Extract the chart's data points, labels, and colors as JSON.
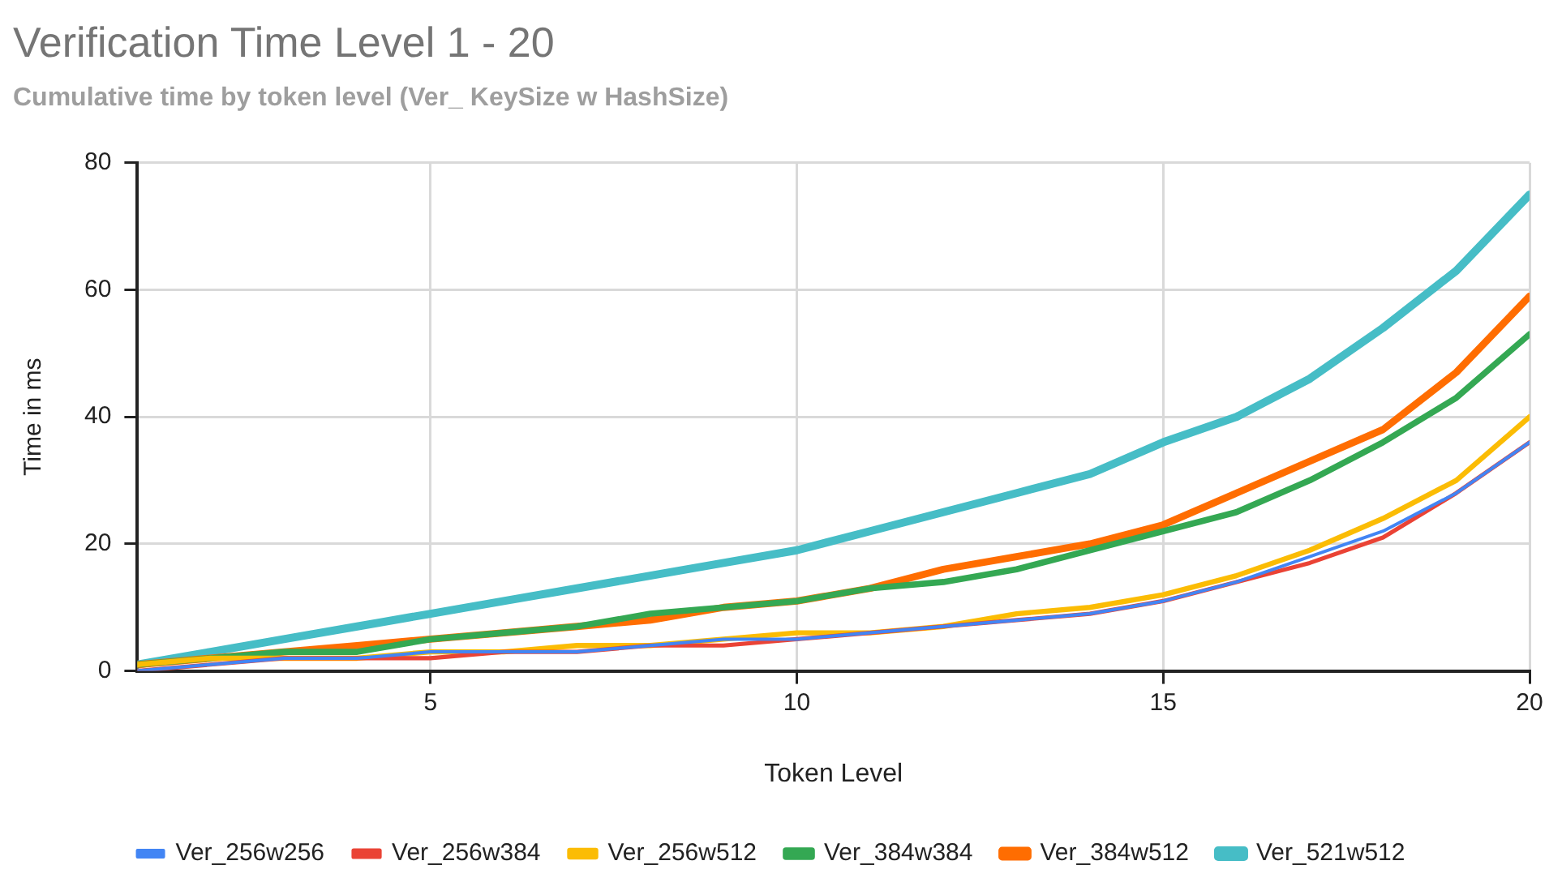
{
  "chart_data": {
    "type": "line",
    "title": "Verification Time Level 1 - 20",
    "subtitle": "Cumulative time by token level (Ver_ KeySize w HashSize)",
    "xlabel": "Token Level",
    "ylabel": "Time in ms",
    "x": [
      1,
      2,
      3,
      4,
      5,
      6,
      7,
      8,
      9,
      10,
      11,
      12,
      13,
      14,
      15,
      16,
      17,
      18,
      19,
      20
    ],
    "xlim": [
      1,
      20
    ],
    "xticks": [
      5,
      10,
      15,
      20
    ],
    "ylim": [
      0,
      80
    ],
    "yticks": [
      0,
      20,
      40,
      60,
      80
    ],
    "grid": true,
    "legend": "bottom",
    "marker": "none",
    "line_style": "solid",
    "series": [
      {
        "name": "Ver_256w256",
        "color": "#4285f4",
        "values": [
          0,
          1,
          2,
          2,
          3,
          3,
          3,
          4,
          5,
          5,
          6,
          7,
          8,
          9,
          11,
          14,
          18,
          22,
          28,
          36
        ]
      },
      {
        "name": "Ver_256w384",
        "color": "#ea4335",
        "values": [
          0,
          1,
          2,
          2,
          2,
          3,
          3,
          4,
          4,
          5,
          6,
          7,
          8,
          9,
          11,
          14,
          17,
          21,
          28,
          36
        ]
      },
      {
        "name": "Ver_256w512",
        "color": "#fbbc04",
        "values": [
          1,
          2,
          2,
          2,
          3,
          3,
          4,
          4,
          5,
          6,
          6,
          7,
          9,
          10,
          12,
          15,
          19,
          24,
          30,
          40
        ]
      },
      {
        "name": "Ver_384w384",
        "color": "#34a853",
        "values": [
          1,
          2,
          3,
          3,
          5,
          6,
          7,
          9,
          10,
          11,
          13,
          14,
          16,
          19,
          22,
          25,
          30,
          36,
          43,
          53
        ]
      },
      {
        "name": "Ver_384w512",
        "color": "#ff6d01",
        "values": [
          1,
          2,
          3,
          4,
          5,
          6,
          7,
          8,
          10,
          11,
          13,
          16,
          18,
          20,
          23,
          28,
          33,
          38,
          47,
          59
        ]
      },
      {
        "name": "Ver_521w512",
        "color": "#46bdc6",
        "values": [
          1,
          3,
          5,
          7,
          9,
          11,
          13,
          15,
          17,
          19,
          22,
          25,
          28,
          31,
          36,
          40,
          46,
          54,
          63,
          75
        ]
      }
    ]
  }
}
